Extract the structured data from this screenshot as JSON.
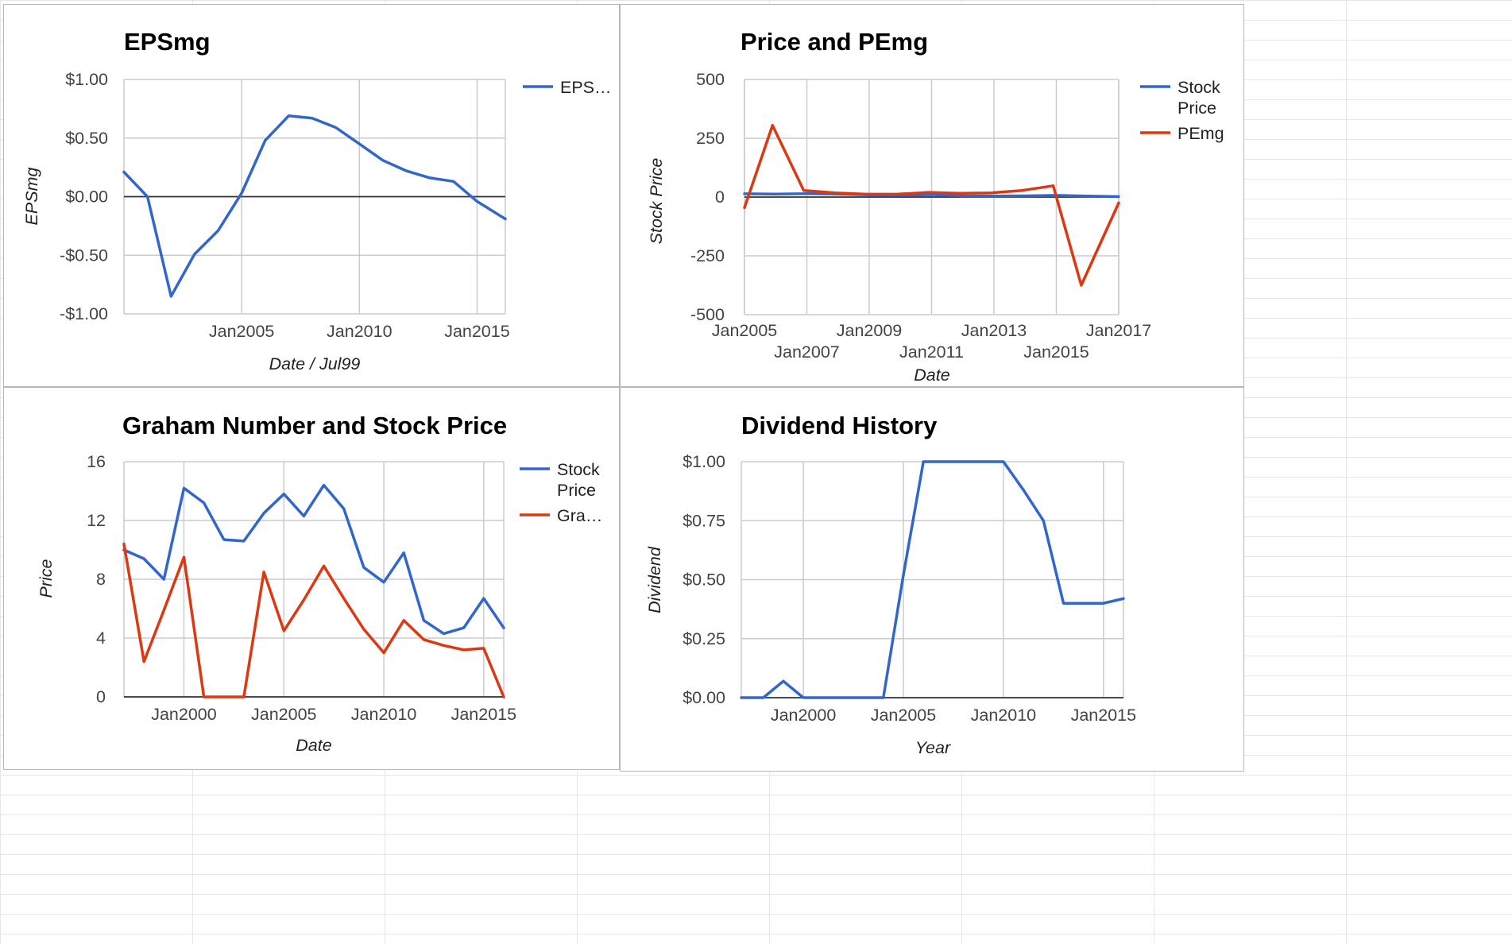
{
  "chart_data": [
    {
      "type": "line",
      "title": "EPSmg",
      "xlabel": "Date / Jul99",
      "ylabel": "EPSmg",
      "x_ticks": [
        {
          "label": "Jan2005",
          "x": 2005
        },
        {
          "label": "Jan2010",
          "x": 2010
        },
        {
          "label": "Jan2015",
          "x": 2015
        }
      ],
      "y_ticks": [
        {
          "label": "$1.00",
          "v": 1.0
        },
        {
          "label": "$0.50",
          "v": 0.5
        },
        {
          "label": "$0.00",
          "v": 0.0
        },
        {
          "label": "-$0.50",
          "v": -0.5
        },
        {
          "label": "-$1.00",
          "v": -1.0
        }
      ],
      "xlim": [
        2000,
        2016.2
      ],
      "ylim": [
        -1.0,
        1.0
      ],
      "legend_position": "right",
      "series": [
        {
          "name": "EPS…",
          "color": "#3366cc",
          "x": [
            2000,
            2001,
            2002,
            2003,
            2004,
            2005,
            2006,
            2007,
            2008,
            2009,
            2010,
            2011,
            2012,
            2013,
            2014,
            2015,
            2016.2
          ],
          "values": [
            0.21,
            0.0,
            -0.85,
            -0.49,
            -0.29,
            0.03,
            0.48,
            0.69,
            0.67,
            0.59,
            0.45,
            0.31,
            0.22,
            0.16,
            0.13,
            -0.04,
            -0.19
          ]
        }
      ]
    },
    {
      "type": "line",
      "title": "Price and PEmg",
      "xlabel": "Date",
      "ylabel": "Stock Price",
      "x_ticks": [
        {
          "label": "Jan2005",
          "x": 2005,
          "row": 1
        },
        {
          "label": "Jan2007",
          "x": 2007,
          "row": 2
        },
        {
          "label": "Jan2009",
          "x": 2009,
          "row": 1
        },
        {
          "label": "Jan2011",
          "x": 2011,
          "row": 2
        },
        {
          "label": "Jan2013",
          "x": 2013,
          "row": 1
        },
        {
          "label": "Jan2015",
          "x": 2015,
          "row": 2
        },
        {
          "label": "Jan2017",
          "x": 2017,
          "row": 1
        }
      ],
      "y_ticks": [
        {
          "label": "500",
          "v": 500
        },
        {
          "label": "250",
          "v": 250
        },
        {
          "label": "0",
          "v": 0
        },
        {
          "label": "-250",
          "v": -250
        },
        {
          "label": "-500",
          "v": -500
        }
      ],
      "xlim": [
        2005,
        2017
      ],
      "ylim": [
        -500,
        500
      ],
      "legend_position": "right",
      "series": [
        {
          "name": "Stock Price",
          "legend_lines": [
            "Stock",
            "Price"
          ],
          "color": "#3366cc",
          "x": [
            2005,
            2006,
            2007,
            2008,
            2009,
            2010,
            2011,
            2012,
            2013,
            2014,
            2015,
            2016,
            2017
          ],
          "values": [
            14,
            12.5,
            14.5,
            13,
            9,
            8,
            10,
            5,
            4.5,
            5,
            7,
            4.5,
            2
          ]
        },
        {
          "name": "PEmg",
          "legend_lines": [
            "PEmg"
          ],
          "color": "#dc3912",
          "x": [
            2005,
            2005.9,
            2006.9,
            2007.9,
            2008.9,
            2009.9,
            2010.9,
            2011.9,
            2012.9,
            2013.9,
            2014.9,
            2015.8,
            2017
          ],
          "values": [
            -45,
            305,
            28,
            18,
            12,
            12,
            20,
            16,
            18,
            28,
            48,
            -375,
            -25
          ]
        }
      ]
    },
    {
      "type": "line",
      "title": "Graham Number and Stock Price",
      "xlabel": "Date",
      "ylabel": "Price",
      "x_ticks": [
        {
          "label": "Jan2000",
          "x": 2000
        },
        {
          "label": "Jan2005",
          "x": 2005
        },
        {
          "label": "Jan2010",
          "x": 2010
        },
        {
          "label": "Jan2015",
          "x": 2015
        }
      ],
      "y_ticks": [
        {
          "label": "16",
          "v": 16
        },
        {
          "label": "12",
          "v": 12
        },
        {
          "label": "8",
          "v": 8
        },
        {
          "label": "4",
          "v": 4
        },
        {
          "label": "0",
          "v": 0
        }
      ],
      "xlim": [
        1997,
        2016
      ],
      "ylim": [
        0,
        16
      ],
      "legend_position": "right",
      "series": [
        {
          "name": "Stock Price",
          "legend_lines": [
            "Stock",
            "Price"
          ],
          "color": "#3366cc",
          "x": [
            1997,
            1998,
            1999,
            2000,
            2001,
            2002,
            2003,
            2004,
            2005,
            2006,
            2007,
            2008,
            2009,
            2010,
            2011,
            2012,
            2013,
            2014,
            2015,
            2016
          ],
          "values": [
            10,
            9.4,
            8,
            14.2,
            13.2,
            10.7,
            10.6,
            12.5,
            13.8,
            12.3,
            14.4,
            12.8,
            8.8,
            7.8,
            9.8,
            5.2,
            4.3,
            4.7,
            6.7,
            4.7
          ]
        },
        {
          "name": "Gra…",
          "legend_lines": [
            "Gra…"
          ],
          "color": "#dc3912",
          "x": [
            1997,
            1998,
            1999,
            2000,
            2001,
            2002,
            2003,
            2004,
            2005,
            2006,
            2007,
            2008,
            2009,
            2010,
            2011,
            2012,
            2013,
            2014,
            2015,
            2016
          ],
          "values": [
            10.4,
            2.4,
            5.9,
            9.5,
            0,
            0,
            0,
            8.5,
            4.5,
            6.6,
            8.9,
            6.7,
            4.6,
            3.0,
            5.2,
            3.9,
            3.5,
            3.2,
            3.3,
            0
          ]
        }
      ]
    },
    {
      "type": "line",
      "title": "Dividend History",
      "xlabel": "Year",
      "ylabel": "Dividend",
      "x_ticks": [
        {
          "label": "Jan2000",
          "x": 2000
        },
        {
          "label": "Jan2005",
          "x": 2005
        },
        {
          "label": "Jan2010",
          "x": 2010
        },
        {
          "label": "Jan2015",
          "x": 2015
        }
      ],
      "y_ticks": [
        {
          "label": "$1.00",
          "v": 1.0
        },
        {
          "label": "$0.75",
          "v": 0.75
        },
        {
          "label": "$0.50",
          "v": 0.5
        },
        {
          "label": "$0.25",
          "v": 0.25
        },
        {
          "label": "$0.00",
          "v": 0.0
        }
      ],
      "xlim": [
        1996.9,
        2016
      ],
      "ylim": [
        0,
        1.0
      ],
      "legend_position": "none",
      "series": [
        {
          "name": "",
          "color": "#3366cc",
          "x": [
            1996.9,
            1998,
            1999,
            2000,
            2001,
            2002,
            2003,
            2004,
            2005,
            2006,
            2007,
            2008,
            2009,
            2010,
            2011,
            2012,
            2013,
            2014,
            2015,
            2016
          ],
          "values": [
            0,
            0,
            0.07,
            0,
            0,
            0,
            0,
            0,
            0.52,
            1.0,
            1.0,
            1.0,
            1.0,
            1.0,
            0.88,
            0.75,
            0.4,
            0.4,
            0.4,
            0.42
          ]
        }
      ]
    }
  ]
}
